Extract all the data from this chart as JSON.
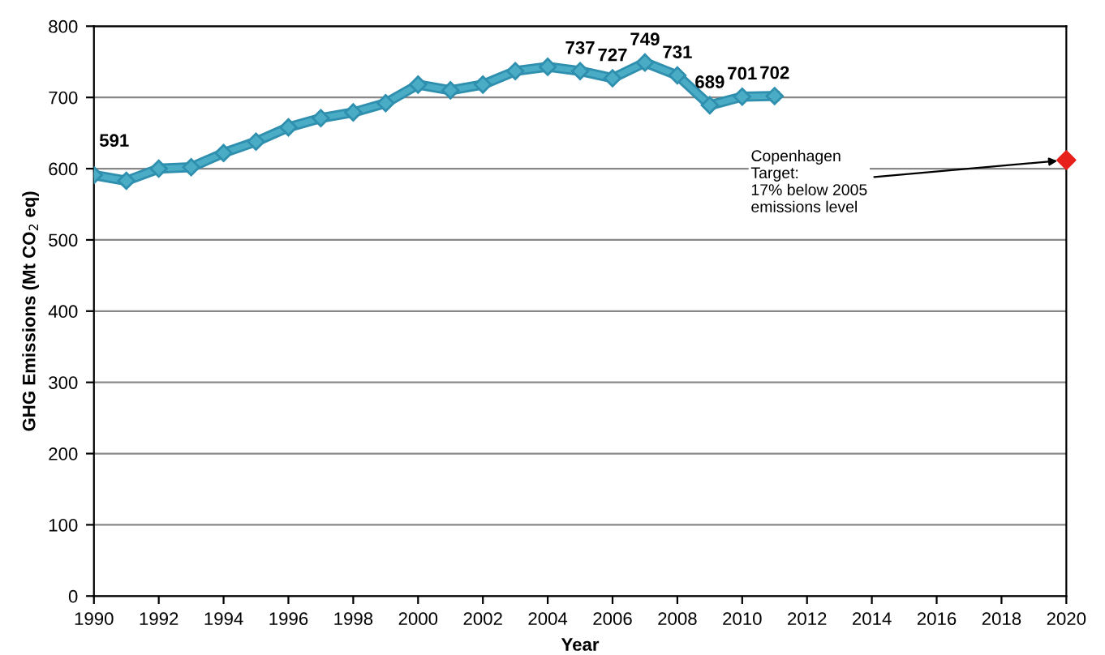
{
  "chart_data": {
    "type": "line",
    "xlabel": "Year",
    "ylabel": "GHG Emissions (Mt CO$_{2}$ eq)",
    "xlim": [
      1990,
      2020
    ],
    "xticks": [
      1990,
      1992,
      1994,
      1996,
      1998,
      2000,
      2002,
      2004,
      2006,
      2008,
      2010,
      2012,
      2014,
      2016,
      2018,
      2020
    ],
    "ylim": [
      0,
      800
    ],
    "yticks": [
      0,
      100,
      200,
      300,
      400,
      500,
      600,
      700,
      800
    ],
    "grid": "y",
    "marker": "diamond",
    "line_style": "solid",
    "series": [
      {
        "color": "#4bacc6",
        "x": [
          1990,
          1991,
          1992,
          1993,
          1994,
          1995,
          1996,
          1997,
          1998,
          1999,
          2000,
          2001,
          2002,
          2003,
          2004,
          2005,
          2006,
          2007,
          2008,
          2009,
          2010,
          2011
        ],
        "values": [
          591,
          583,
          600,
          602,
          622,
          638,
          658,
          671,
          679,
          692,
          718,
          710,
          718,
          737,
          743,
          737,
          727,
          749,
          731,
          689,
          701,
          702
        ],
        "value_labels": [
          "591",
          null,
          null,
          null,
          null,
          null,
          null,
          null,
          null,
          null,
          null,
          null,
          null,
          null,
          null,
          "737",
          "727",
          "749",
          "731",
          "689",
          "701",
          "702"
        ]
      },
      {
        "type": "scatter",
        "color": "#e8201c",
        "x": [
          2020
        ],
        "values": [
          612
        ]
      }
    ],
    "annotations": [
      {
        "text": "Copenhagen\nTarget:\n17% below 2005\nemissions level",
        "x": 2020,
        "y": 612
      }
    ]
  }
}
